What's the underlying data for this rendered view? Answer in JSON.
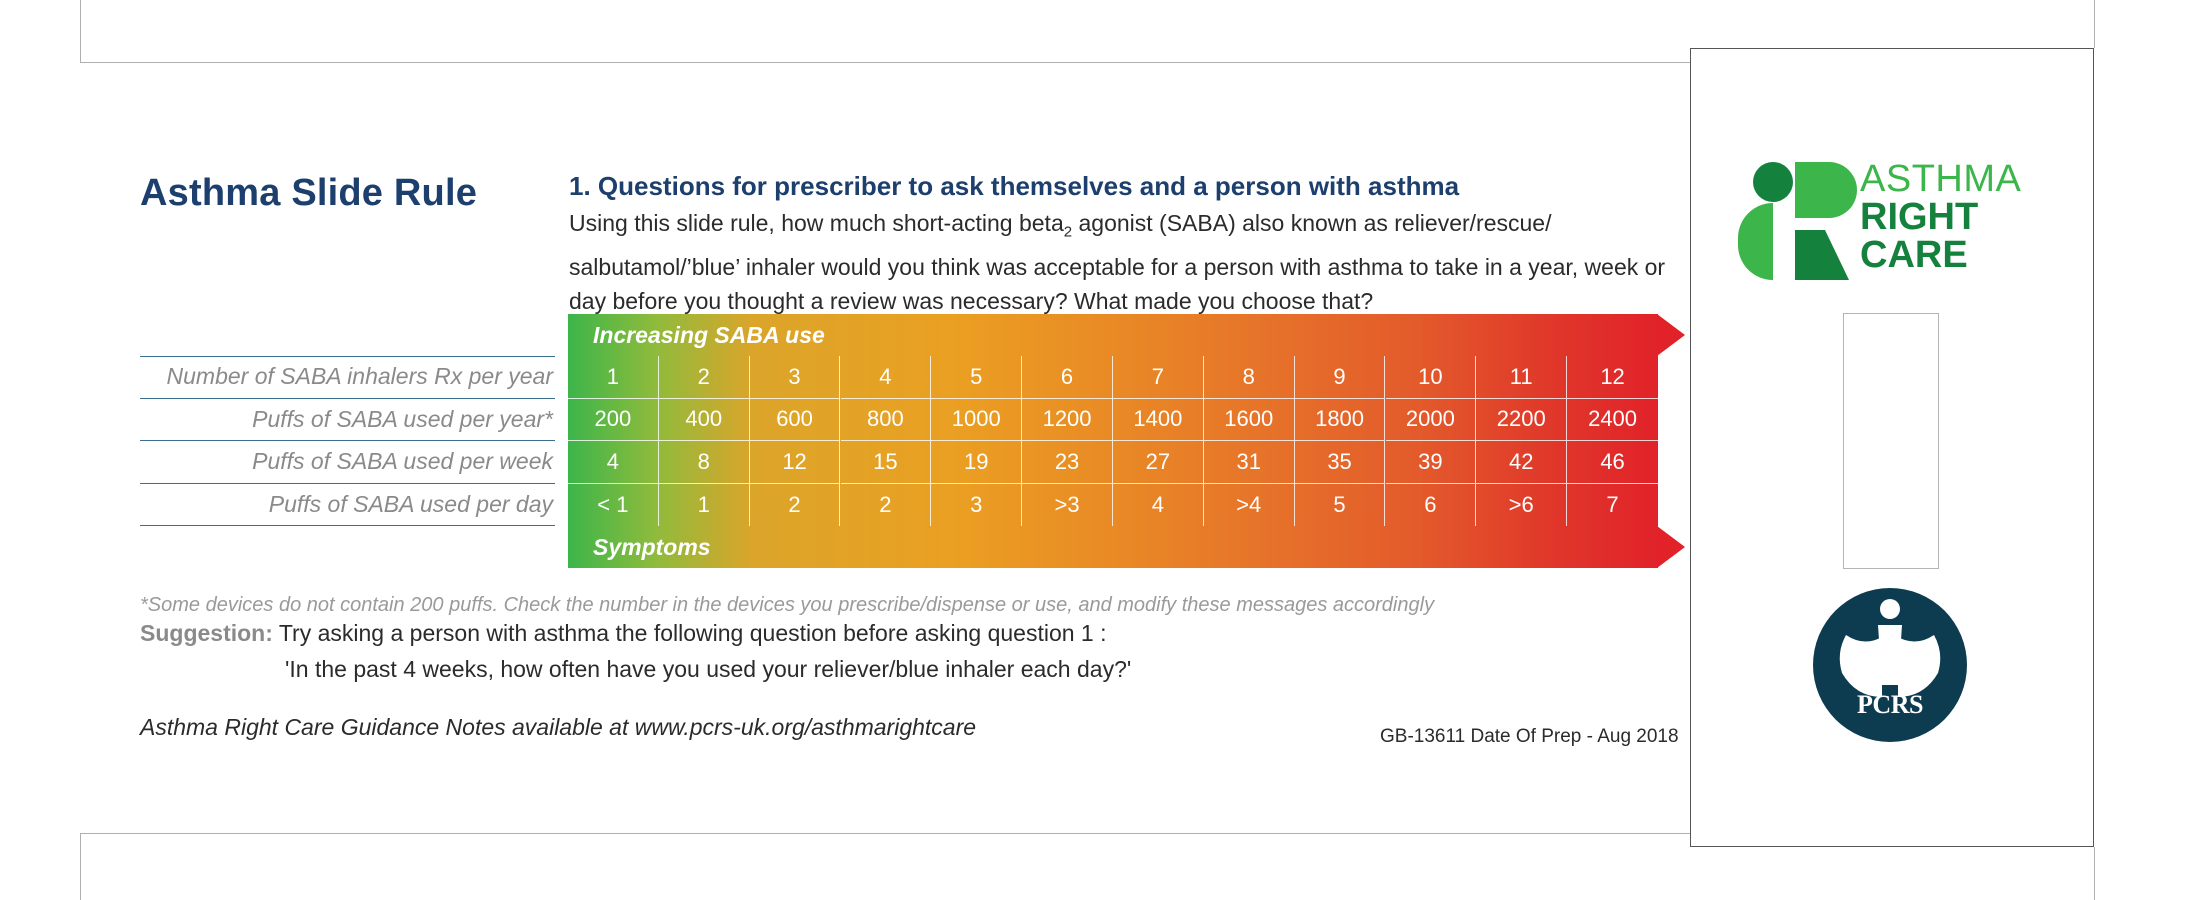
{
  "card": {
    "title": "Asthma Slide Rule"
  },
  "question": {
    "heading": "1.  Questions for prescriber to ask themselves and a person with asthma",
    "body_part1": "Using this slide rule, how much short-acting beta",
    "body_sub": "2",
    "body_part2": " agonist (SABA) also known as reliever/rescue/ salbutamol/’blue’ inhaler would you think was acceptable for a person with asthma to take in a year, week or day before you thought a review was necessary? What made you choose that?"
  },
  "table": {
    "top_band_label": "Increasing SABA use",
    "bottom_band_label": "Symptoms",
    "rows": [
      {
        "label": "Number of SABA inhalers Rx per year",
        "values": [
          "1",
          "2",
          "3",
          "4",
          "5",
          "6",
          "7",
          "8",
          "9",
          "10",
          "11",
          "12"
        ]
      },
      {
        "label": "Puffs of SABA used per year*",
        "values": [
          "200",
          "400",
          "600",
          "800",
          "1000",
          "1200",
          "1400",
          "1600",
          "1800",
          "2000",
          "2200",
          "2400"
        ]
      },
      {
        "label": "Puffs of SABA used per week",
        "values": [
          "4",
          "8",
          "12",
          "15",
          "19",
          "23",
          "27",
          "31",
          "35",
          "39",
          "42",
          "46"
        ]
      },
      {
        "label": "Puffs of SABA used per day",
        "values": [
          "< 1",
          "1",
          "2",
          "2",
          "3",
          ">3",
          "4",
          ">4",
          "5",
          "6",
          ">6",
          "7"
        ]
      }
    ],
    "colors": {
      "start": "#3cb54a",
      "mid": "#eaa022",
      "end": "#e1222a"
    }
  },
  "footnote": "*Some devices do not contain 200 puffs. Check the number in the devices you prescribe/dispense or use, and modify these messages accordingly",
  "suggestion": {
    "label": "Suggestion:",
    "text": " Try asking a person with asthma the following question before asking question 1 :",
    "question": "'In the past 4 weeks, how often have you used your reliever/blue inhaler each day?'"
  },
  "guidance": "Asthma Right Care Guidance Notes available at www.pcrs-uk.org/asthmarightcare",
  "prep": "GB-13611 Date Of Prep - Aug 2018",
  "logos": {
    "asthma_right_care": {
      "line1": "ASTHMA",
      "line2": "RIGHT",
      "line3": "CARE",
      "icon": "asthma-right-care-logo-icon",
      "color": "#159447"
    },
    "pcrs": {
      "label": "PCRS",
      "icon": "pcrs-logo-icon",
      "color": "#0d3b4f"
    }
  }
}
